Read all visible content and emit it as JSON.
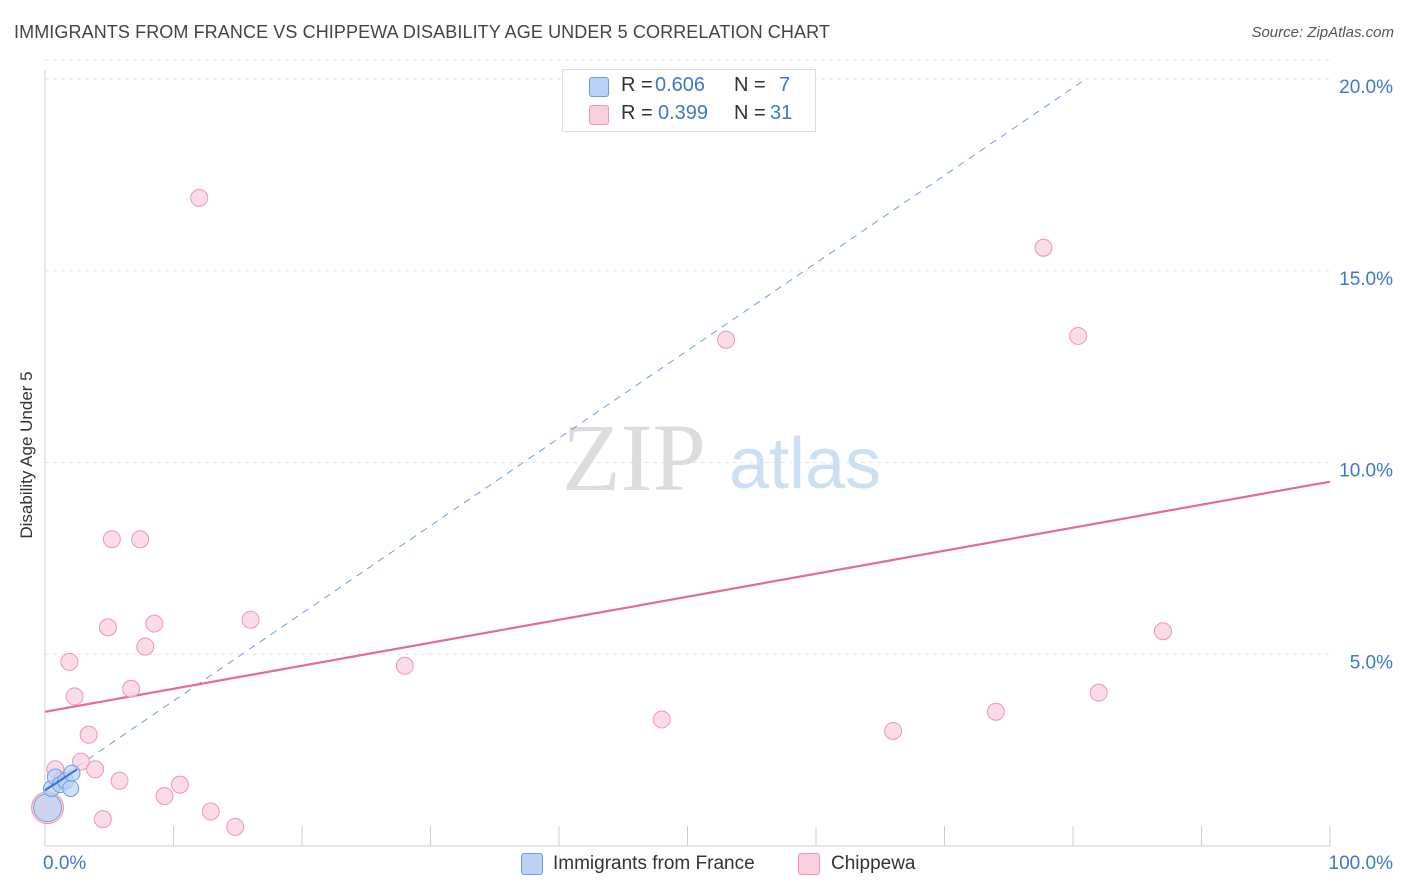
{
  "title": "IMMIGRANTS FROM FRANCE VS CHIPPEWA DISABILITY AGE UNDER 5 CORRELATION CHART",
  "source": "Source: ZipAtlas.com",
  "watermark": {
    "zip": "ZIP",
    "atlas": "atlas"
  },
  "legend": {
    "france": {
      "r_label": "R =",
      "r_value": "0.606",
      "n_label": "N =",
      "n_value": "7"
    },
    "chippewa": {
      "r_label": "R =",
      "r_value": "0.399",
      "n_label": "N =",
      "n_value": "31"
    }
  },
  "bottom_legend": {
    "france": "Immigrants from France",
    "chippewa": "Chippewa"
  },
  "colors": {
    "france_fill": "#b9d2f3",
    "france_stroke": "#6f9de0",
    "france_line": "#3d6fd6",
    "chippewa_fill": "#f9cfdc",
    "chippewa_stroke": "#ef97b3",
    "chippewa_line": "#e26b98",
    "axis_text": "#3d78c9",
    "grid": "#e3e3e3"
  },
  "chart_data": {
    "type": "scatter",
    "title": "IMMIGRANTS FROM FRANCE VS CHIPPEWA DISABILITY AGE UNDER 5 CORRELATION CHART",
    "xlabel": "",
    "ylabel": "Disability Age Under 5",
    "xlim": [
      0,
      100
    ],
    "ylim": [
      0,
      20.5
    ],
    "x_tick_labels": [
      "0.0%",
      "100.0%"
    ],
    "y_ticks": [
      5,
      10,
      15,
      20
    ],
    "y_tick_labels": [
      "5.0%",
      "10.0%",
      "15.0%",
      "20.0%"
    ],
    "series": [
      {
        "name": "Immigrants from France",
        "points": [
          {
            "x": 0.2,
            "y": 1.0,
            "big": true
          },
          {
            "x": 0.5,
            "y": 1.5
          },
          {
            "x": 0.8,
            "y": 1.8
          },
          {
            "x": 1.2,
            "y": 1.6
          },
          {
            "x": 1.6,
            "y": 1.7
          },
          {
            "x": 2.0,
            "y": 1.5
          },
          {
            "x": 2.1,
            "y": 1.9
          }
        ],
        "trend": {
          "x1": 0.0,
          "y1": 1.5,
          "x2": 81.0,
          "y2": 20.0,
          "style": "dashed"
        }
      },
      {
        "name": "Chippewa",
        "points": [
          {
            "x": 0.2,
            "y": 1.0,
            "big": true
          },
          {
            "x": 0.8,
            "y": 2.0
          },
          {
            "x": 1.3,
            "y": 1.7
          },
          {
            "x": 1.9,
            "y": 4.8
          },
          {
            "x": 2.3,
            "y": 3.9
          },
          {
            "x": 2.8,
            "y": 2.2
          },
          {
            "x": 3.4,
            "y": 2.9
          },
          {
            "x": 3.9,
            "y": 2.0
          },
          {
            "x": 4.5,
            "y": 0.7
          },
          {
            "x": 4.9,
            "y": 5.7
          },
          {
            "x": 5.2,
            "y": 8.0
          },
          {
            "x": 5.8,
            "y": 1.7
          },
          {
            "x": 6.7,
            "y": 4.1
          },
          {
            "x": 7.4,
            "y": 8.0
          },
          {
            "x": 7.8,
            "y": 5.2
          },
          {
            "x": 8.5,
            "y": 5.8
          },
          {
            "x": 9.3,
            "y": 1.3
          },
          {
            "x": 10.5,
            "y": 1.6
          },
          {
            "x": 12.0,
            "y": 16.9
          },
          {
            "x": 12.9,
            "y": 0.9
          },
          {
            "x": 14.8,
            "y": 0.5
          },
          {
            "x": 16.0,
            "y": 5.9
          },
          {
            "x": 28.0,
            "y": 4.7
          },
          {
            "x": 48.0,
            "y": 3.3
          },
          {
            "x": 53.0,
            "y": 13.2
          },
          {
            "x": 66.0,
            "y": 3.0
          },
          {
            "x": 74.0,
            "y": 3.5
          },
          {
            "x": 77.7,
            "y": 15.6
          },
          {
            "x": 80.4,
            "y": 13.3
          },
          {
            "x": 82.0,
            "y": 4.0
          },
          {
            "x": 87.0,
            "y": 5.6
          }
        ],
        "trend": {
          "x1": 0.0,
          "y1": 3.5,
          "x2": 100.0,
          "y2": 9.5,
          "style": "solid"
        }
      }
    ]
  }
}
